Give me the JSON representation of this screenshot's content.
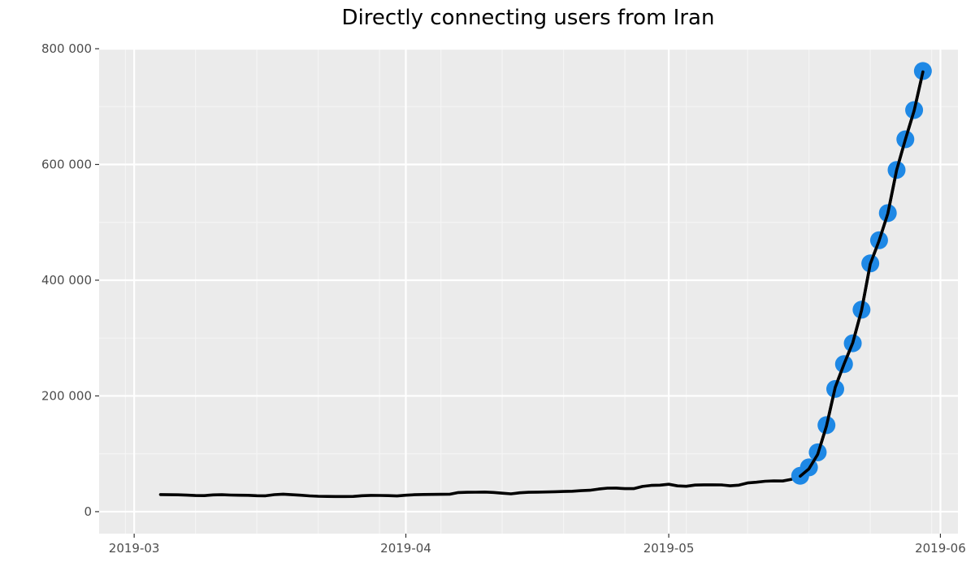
{
  "chart_data": {
    "type": "line",
    "title": "Directly connecting users from Iran",
    "xlabel": "",
    "ylabel": "",
    "x_axis": {
      "kind": "date",
      "range": [
        "2019-02-25",
        "2019-06-03"
      ],
      "ticks": [
        "2019-03-01",
        "2019-04-01",
        "2019-05-01",
        "2019-06-01"
      ],
      "tick_labels": [
        "2019-03",
        "2019-04",
        "2019-05",
        "2019-06"
      ]
    },
    "y_axis": {
      "range": [
        -38000,
        800000
      ],
      "ticks": [
        0,
        200000,
        400000,
        600000,
        800000
      ],
      "tick_labels": [
        "0",
        "200 000",
        "400 000",
        "600 000",
        "800 000"
      ]
    },
    "grid": true,
    "legend": "none",
    "colors": {
      "panel_background": "#EBEBEB",
      "grid_major": "#FFFFFF",
      "grid_minor": "#F5F5F5",
      "line": "#000000",
      "highlight_points": "#1E88E5",
      "tick_label": "#4D4D4D",
      "tick_mark": "#333333"
    },
    "series": [
      {
        "kind": "line",
        "values": [
          [
            "2019-03-04",
            29500
          ],
          [
            "2019-03-05",
            29300
          ],
          [
            "2019-03-06",
            29100
          ],
          [
            "2019-03-07",
            28600
          ],
          [
            "2019-03-08",
            27900
          ],
          [
            "2019-03-09",
            27700
          ],
          [
            "2019-03-10",
            29000
          ],
          [
            "2019-03-11",
            29200
          ],
          [
            "2019-03-12",
            28700
          ],
          [
            "2019-03-13",
            28400
          ],
          [
            "2019-03-14",
            28200
          ],
          [
            "2019-03-15",
            27500
          ],
          [
            "2019-03-16",
            27400
          ],
          [
            "2019-03-17",
            29400
          ],
          [
            "2019-03-18",
            30200
          ],
          [
            "2019-03-19",
            29300
          ],
          [
            "2019-03-20",
            28400
          ],
          [
            "2019-03-21",
            27300
          ],
          [
            "2019-03-22",
            26500
          ],
          [
            "2019-03-23",
            26300
          ],
          [
            "2019-03-24",
            26200
          ],
          [
            "2019-03-25",
            26100
          ],
          [
            "2019-03-26",
            26300
          ],
          [
            "2019-03-27",
            27600
          ],
          [
            "2019-03-28",
            28100
          ],
          [
            "2019-03-29",
            28000
          ],
          [
            "2019-03-30",
            27700
          ],
          [
            "2019-03-31",
            27200
          ],
          [
            "2019-04-01",
            28400
          ],
          [
            "2019-04-02",
            29200
          ],
          [
            "2019-04-03",
            29600
          ],
          [
            "2019-04-04",
            29800
          ],
          [
            "2019-04-05",
            30000
          ],
          [
            "2019-04-06",
            30100
          ],
          [
            "2019-04-07",
            33000
          ],
          [
            "2019-04-08",
            33400
          ],
          [
            "2019-04-09",
            33600
          ],
          [
            "2019-04-10",
            33900
          ],
          [
            "2019-04-11",
            33100
          ],
          [
            "2019-04-12",
            31900
          ],
          [
            "2019-04-13",
            30800
          ],
          [
            "2019-04-14",
            32600
          ],
          [
            "2019-04-15",
            33500
          ],
          [
            "2019-04-16",
            33700
          ],
          [
            "2019-04-17",
            34000
          ],
          [
            "2019-04-18",
            34500
          ],
          [
            "2019-04-19",
            34900
          ],
          [
            "2019-04-20",
            35300
          ],
          [
            "2019-04-21",
            36300
          ],
          [
            "2019-04-22",
            36900
          ],
          [
            "2019-04-23",
            39000
          ],
          [
            "2019-04-24",
            40600
          ],
          [
            "2019-04-25",
            40800
          ],
          [
            "2019-04-26",
            39700
          ],
          [
            "2019-04-27",
            39800
          ],
          [
            "2019-04-28",
            43500
          ],
          [
            "2019-04-29",
            45400
          ],
          [
            "2019-04-30",
            45800
          ],
          [
            "2019-05-01",
            47400
          ],
          [
            "2019-05-02",
            44600
          ],
          [
            "2019-05-03",
            43900
          ],
          [
            "2019-05-04",
            46000
          ],
          [
            "2019-05-05",
            46300
          ],
          [
            "2019-05-06",
            46400
          ],
          [
            "2019-05-07",
            46200
          ],
          [
            "2019-05-08",
            44700
          ],
          [
            "2019-05-09",
            45800
          ],
          [
            "2019-05-10",
            49600
          ],
          [
            "2019-05-11",
            50900
          ],
          [
            "2019-05-12",
            52600
          ],
          [
            "2019-05-13",
            53100
          ],
          [
            "2019-05-14",
            53000
          ],
          [
            "2019-05-15",
            55900
          ],
          [
            "2019-05-16",
            61200
          ],
          [
            "2019-05-17",
            74000
          ],
          [
            "2019-05-18",
            99000
          ],
          [
            "2019-05-19",
            148000
          ],
          [
            "2019-05-20",
            215000
          ],
          [
            "2019-05-21",
            255000
          ],
          [
            "2019-05-22",
            292000
          ],
          [
            "2019-05-23",
            348000
          ],
          [
            "2019-05-24",
            428000
          ],
          [
            "2019-05-25",
            468000
          ],
          [
            "2019-05-26",
            515000
          ],
          [
            "2019-05-27",
            590000
          ],
          [
            "2019-05-28",
            643000
          ],
          [
            "2019-05-29",
            693000
          ],
          [
            "2019-05-30",
            760000
          ]
        ]
      },
      {
        "kind": "points",
        "values": [
          [
            "2019-05-16",
            62000
          ],
          [
            "2019-05-17",
            76500
          ],
          [
            "2019-05-18",
            102500
          ],
          [
            "2019-05-19",
            149500
          ],
          [
            "2019-05-20",
            212000
          ],
          [
            "2019-05-21",
            255000
          ],
          [
            "2019-05-22",
            291000
          ],
          [
            "2019-05-23",
            349000
          ],
          [
            "2019-05-24",
            429000
          ],
          [
            "2019-05-25",
            469000
          ],
          [
            "2019-05-26",
            516000
          ],
          [
            "2019-05-27",
            590500
          ],
          [
            "2019-05-28",
            643500
          ],
          [
            "2019-05-29",
            694000
          ],
          [
            "2019-05-30",
            761500
          ]
        ]
      }
    ]
  }
}
